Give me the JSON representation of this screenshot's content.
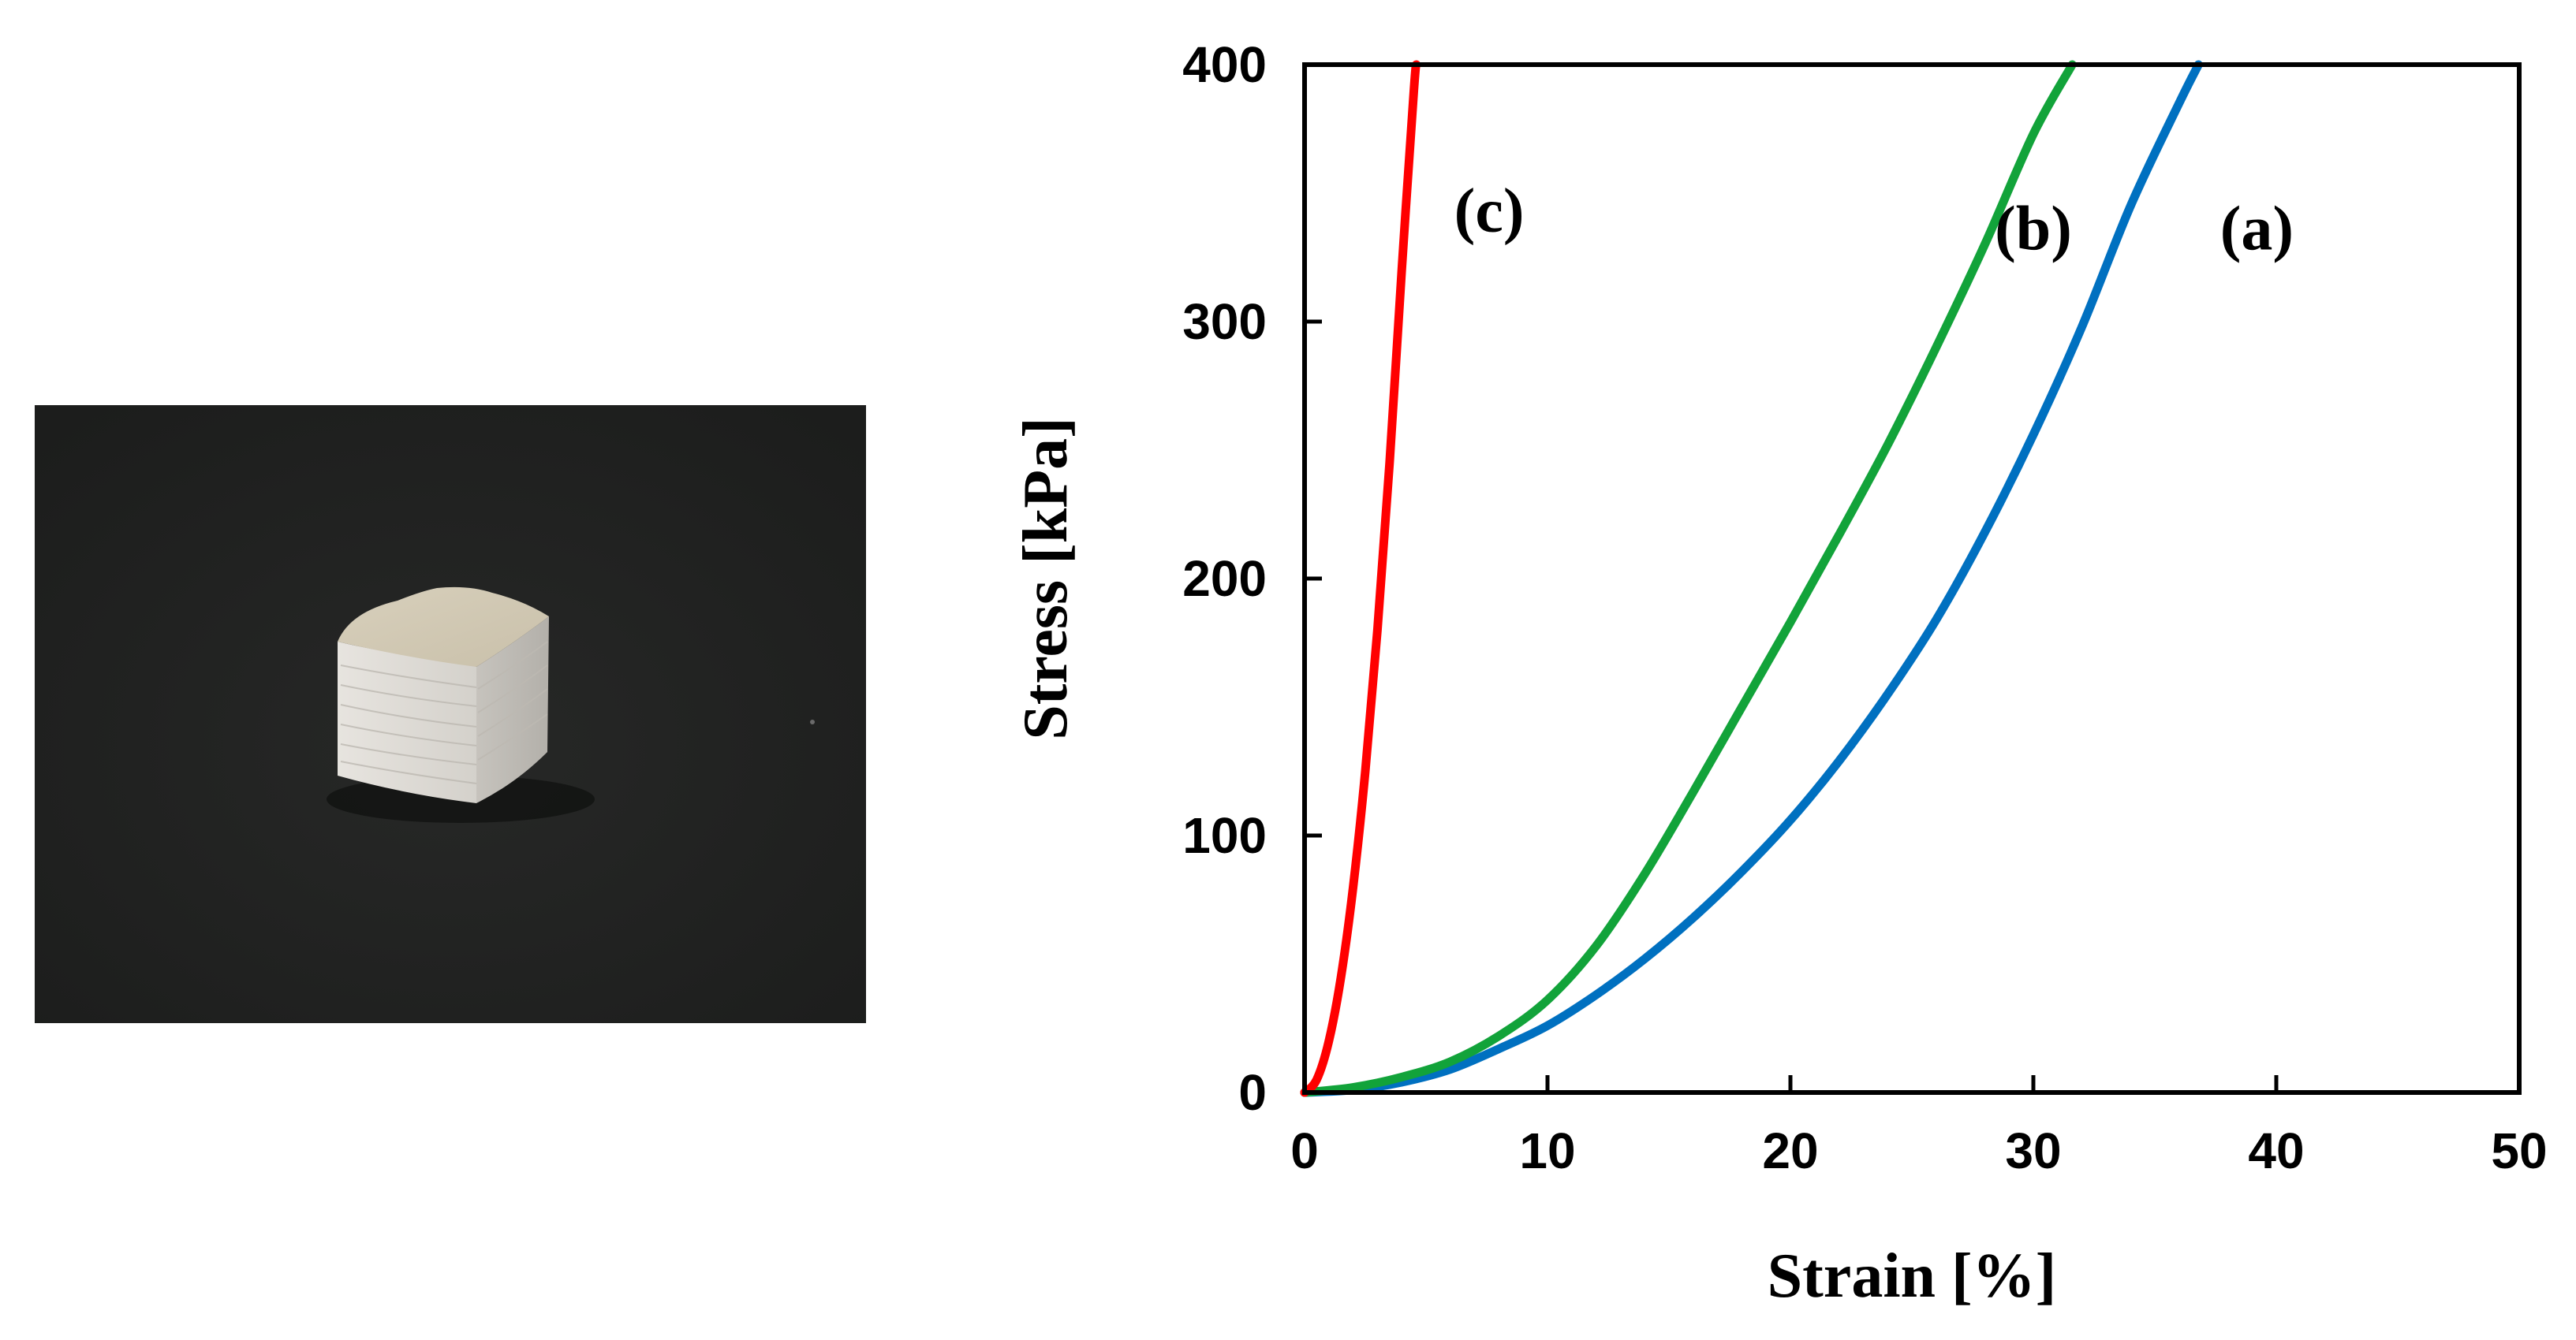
{
  "photo": {
    "subject": "white porous cube sample",
    "background_color": "#1c1d1c",
    "object_color": "#e4e1da"
  },
  "chart_data": {
    "type": "line",
    "title": "",
    "xlabel": "Strain  [%]",
    "ylabel": "Stress [kPa]",
    "xlim": [
      0,
      50
    ],
    "ylim": [
      0,
      400
    ],
    "xticks": [
      0,
      10,
      20,
      30,
      40,
      50
    ],
    "yticks": [
      0,
      100,
      200,
      300,
      400
    ],
    "grid": false,
    "series": [
      {
        "name": "(a)",
        "color": "#0070c0",
        "x": [
          0,
          2,
          4,
          6,
          8,
          10,
          12,
          14,
          16,
          18,
          20,
          22,
          24,
          26,
          28,
          30,
          32,
          34,
          36,
          36.8
        ],
        "y": [
          0,
          1,
          4,
          9,
          17,
          26,
          38,
          52,
          68,
          86,
          106,
          129,
          155,
          184,
          218,
          256,
          298,
          345,
          385,
          400
        ]
      },
      {
        "name": "(b)",
        "color": "#12a33a",
        "x": [
          0,
          2,
          4,
          6,
          8,
          10,
          12,
          14,
          16,
          18,
          20,
          22,
          24,
          26,
          28,
          30,
          31.6
        ],
        "y": [
          0,
          2,
          6,
          12,
          22,
          36,
          57,
          85,
          117,
          150,
          183,
          217,
          252,
          290,
          330,
          373,
          400
        ]
      },
      {
        "name": "(c)",
        "color": "#ff0000",
        "x": [
          0,
          0.5,
          1,
          1.5,
          2,
          2.5,
          3,
          3.5,
          4,
          4.5,
          4.6
        ],
        "y": [
          0,
          5,
          20,
          45,
          80,
          125,
          180,
          245,
          320,
          390,
          400
        ]
      }
    ],
    "annotations": [
      {
        "text": "(c)",
        "x": 7.6,
        "y": 335,
        "series": "(c)"
      },
      {
        "text": "(b)",
        "x": 30.0,
        "y": 328,
        "series": "(b)"
      },
      {
        "text": "(a)",
        "x": 39.2,
        "y": 328,
        "series": "(a)"
      }
    ]
  }
}
